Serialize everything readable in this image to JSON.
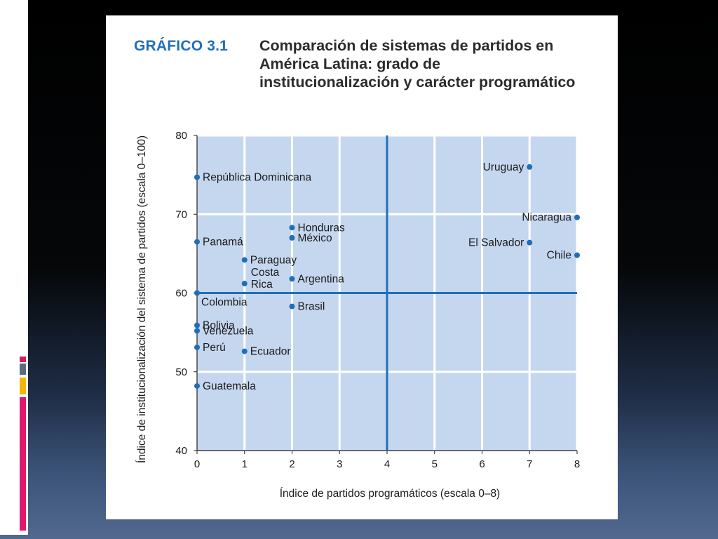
{
  "figure": {
    "label": "GRÁFICO 3.1",
    "title": "Comparación de sistemas de partidos en América Latina: grado de institucionalización y carácter programático"
  },
  "colors": {
    "plot_background": "#c5d7ef",
    "accent": "#1f6fb8",
    "grid": "#ffffff",
    "deco_bars": [
      "#ffffff",
      "#d81b60",
      "#5a6a80",
      "#f2b705",
      "#e0176f"
    ]
  },
  "chart_data": {
    "type": "scatter",
    "xlabel": "Índice de partidos programáticos (escala 0–8)",
    "ylabel": "Índice de institucionalización del sistema de partidos (escala 0–100)",
    "xlim": [
      0,
      8
    ],
    "ylim": [
      40,
      80
    ],
    "xticks": [
      0,
      1,
      2,
      3,
      4,
      5,
      6,
      7,
      8
    ],
    "yticks": [
      40,
      50,
      60,
      70,
      80
    ],
    "grid": true,
    "reference_lines": {
      "x": 4,
      "y": 60
    },
    "points": [
      {
        "name": "República Dominicana",
        "x": 0,
        "y": 74.7,
        "label_side": "right"
      },
      {
        "name": "Panamá",
        "x": 0,
        "y": 66.5,
        "label_side": "right"
      },
      {
        "name": "Colombia",
        "x": 0,
        "y": 60,
        "label_side": "below-right"
      },
      {
        "name": "Bolivia",
        "x": 0,
        "y": 55.9,
        "label_side": "right"
      },
      {
        "name": "Venezuela",
        "x": 0,
        "y": 55.2,
        "label_side": "right"
      },
      {
        "name": "Perú",
        "x": 0,
        "y": 53.1,
        "label_side": "right"
      },
      {
        "name": "Guatemala",
        "x": 0,
        "y": 48.2,
        "label_side": "right"
      },
      {
        "name": "Paraguay",
        "x": 1,
        "y": 64.2,
        "label_side": "right"
      },
      {
        "name": "Costa Rica",
        "x": 1,
        "y": 61.2,
        "label_side": "right-stacked"
      },
      {
        "name": "Ecuador",
        "x": 1,
        "y": 52.6,
        "label_side": "right"
      },
      {
        "name": "Honduras",
        "x": 2,
        "y": 68.3,
        "label_side": "right"
      },
      {
        "name": "México",
        "x": 2,
        "y": 67,
        "label_side": "right"
      },
      {
        "name": "Argentina",
        "x": 2,
        "y": 61.8,
        "label_side": "right"
      },
      {
        "name": "Brasil",
        "x": 2,
        "y": 58.3,
        "label_side": "right"
      },
      {
        "name": "Uruguay",
        "x": 7,
        "y": 76,
        "label_side": "left"
      },
      {
        "name": "El Salvador",
        "x": 7,
        "y": 66.4,
        "label_side": "left"
      },
      {
        "name": "Nicaragua",
        "x": 8,
        "y": 69.6,
        "label_side": "left"
      },
      {
        "name": "Chile",
        "x": 8,
        "y": 64.8,
        "label_side": "left"
      }
    ]
  }
}
